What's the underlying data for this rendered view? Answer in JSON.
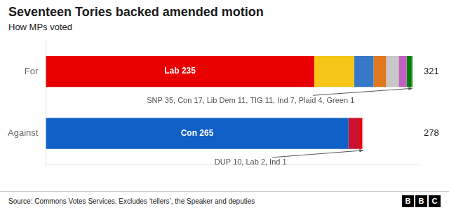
{
  "chart_data": {
    "type": "bar",
    "orientation": "horizontal",
    "stacked": true,
    "title": "Seventeen Tories backed amended motion",
    "subtitle": "How MPs voted",
    "source": "Source: Commons Votes Services. Excludes ‘tellers’, the Speaker and deputies",
    "logo": "BBC",
    "categories": [
      "For",
      "Against"
    ],
    "series": [
      {
        "color": "#e80000",
        "values": [
          235,
          null
        ],
        "value_labels": [
          "Lab 235",
          null
        ]
      },
      {
        "color": "#f5c518",
        "values": [
          35,
          null
        ]
      },
      {
        "color": "#3878c8",
        "values": [
          17,
          null
        ]
      },
      {
        "color": "#e07820",
        "values": [
          11,
          null
        ]
      },
      {
        "color": "#c8c8c8",
        "values": [
          11,
          null
        ]
      },
      {
        "color": "#c060c0",
        "values": [
          7,
          null
        ]
      },
      {
        "color": "#008000",
        "values": [
          4,
          null
        ]
      },
      {
        "color": "#008000",
        "values": [
          1,
          null
        ]
      },
      {
        "color": "#1060c8",
        "values": [
          null,
          265
        ],
        "value_labels": [
          null,
          "Con 265"
        ]
      },
      {
        "color": "#cc1030",
        "values": [
          null,
          10
        ]
      },
      {
        "color": "#e80000",
        "values": [
          null,
          2
        ]
      },
      {
        "color": "#c8c8c8",
        "values": [
          null,
          1
        ]
      }
    ],
    "totals": [
      321,
      278
    ],
    "annotations": [
      {
        "category": "For",
        "text": "SNP 35, Con 17, Lib Dem 11, TIG 11, Ind 7, Plaid 4, Green 1"
      },
      {
        "category": "Against",
        "text": "DUP 10, Lab 2, Ind 1"
      }
    ],
    "xlim": [
      0,
      326
    ],
    "tick_labels": "y",
    "grid": false
  }
}
